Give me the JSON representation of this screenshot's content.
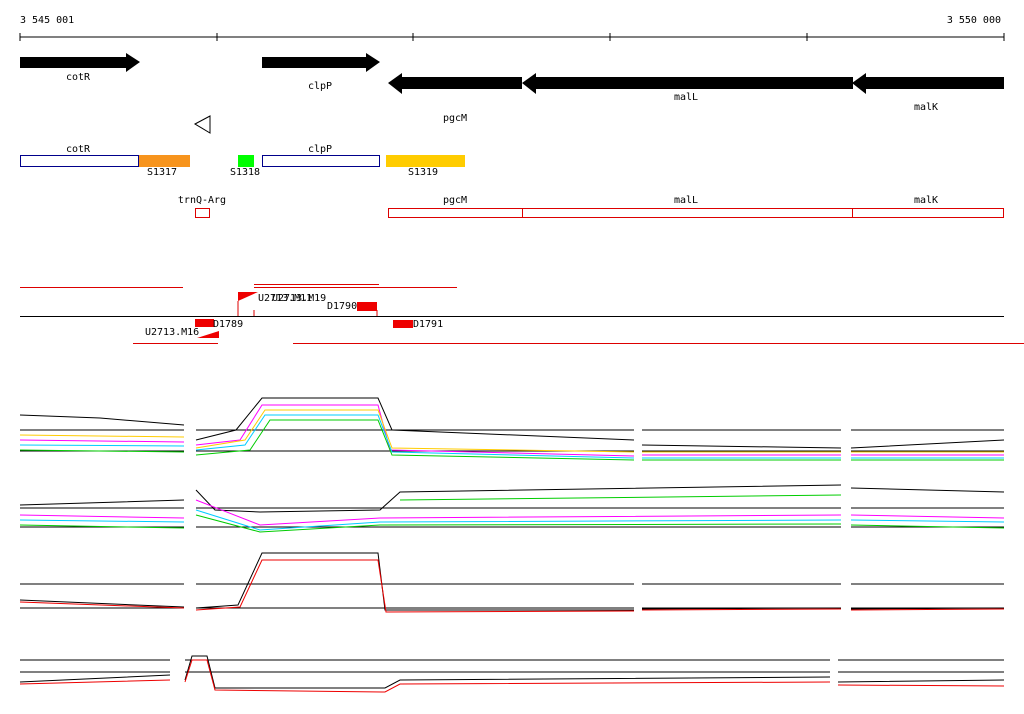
{
  "ruler": {
    "start": "3 545 001",
    "end": "3 550 000"
  },
  "genes": [
    "cotR",
    "clpP",
    "pgcM",
    "malL",
    "malK"
  ],
  "annotations": {
    "cotR": "cotR",
    "S1317": "S1317",
    "S1318": "S1318",
    "clpP": "clpP",
    "S1319": "S1319"
  },
  "rna_features": [
    "trnQ-Arg",
    "pgcM",
    "malL",
    "malK"
  ],
  "probes": [
    "U2713.M11",
    "U2713.M19",
    "D1790",
    "D1789",
    "D1791",
    "U2713.M16"
  ]
}
